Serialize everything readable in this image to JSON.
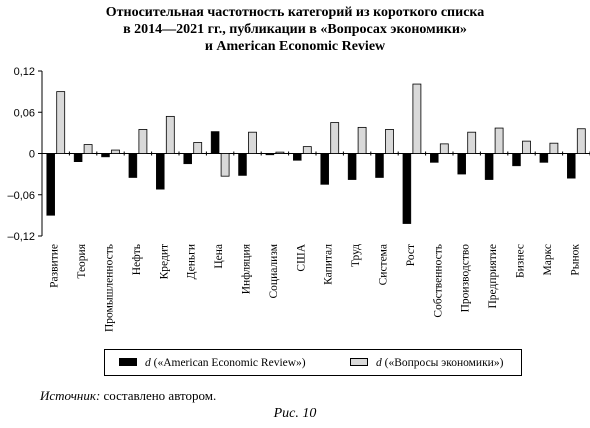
{
  "title_lines": [
    "Относительная частотность категорий из короткого списка",
    "в 2014—2021 гг., публикации в «Вопросах экономики»",
    "и American Economic Review"
  ],
  "source_prefix": "Источник:",
  "source_text": " составлено автором.",
  "figure_caption": "Рис. 10",
  "chart_data": {
    "type": "bar",
    "categories": [
      "Развитие",
      "Теория",
      "Промышленность",
      "Нефть",
      "Кредит",
      "Деньги",
      "Цена",
      "Инфляция",
      "Социализм",
      "США",
      "Капитал",
      "Труд",
      "Система",
      "Рост",
      "Собственность",
      "Производство",
      "Предприятие",
      "Бизнес",
      "Маркс",
      "Рынок"
    ],
    "series": [
      {
        "name": "d («American Economic Review»)",
        "legend_var": "d",
        "legend_rest": " («American Economic Review»)",
        "color": "#000000",
        "values": [
          -0.09,
          -0.012,
          -0.005,
          -0.035,
          -0.052,
          -0.015,
          0.032,
          -0.032,
          -0.002,
          -0.01,
          -0.045,
          -0.038,
          -0.035,
          -0.102,
          -0.013,
          -0.03,
          -0.038,
          -0.018,
          -0.013,
          -0.036
        ]
      },
      {
        "name": "d («Вопросы экономики»)",
        "legend_var": "d",
        "legend_rest": " («Вопросы экономики»)",
        "color": "#d9d9d9",
        "values": [
          0.09,
          0.013,
          0.005,
          0.035,
          0.054,
          0.016,
          -0.033,
          0.031,
          0.002,
          0.01,
          0.045,
          0.038,
          0.035,
          0.101,
          0.014,
          0.031,
          0.037,
          0.018,
          0.015,
          0.036
        ]
      }
    ],
    "ylim": [
      -0.12,
      0.12
    ],
    "yticks": [
      0.12,
      0.06,
      0,
      -0.06,
      -0.12
    ],
    "ytick_labels": [
      "0,12",
      "0,06",
      "0",
      "–0,06",
      "–0,12"
    ],
    "grid": false,
    "legend_position": "bottom"
  }
}
